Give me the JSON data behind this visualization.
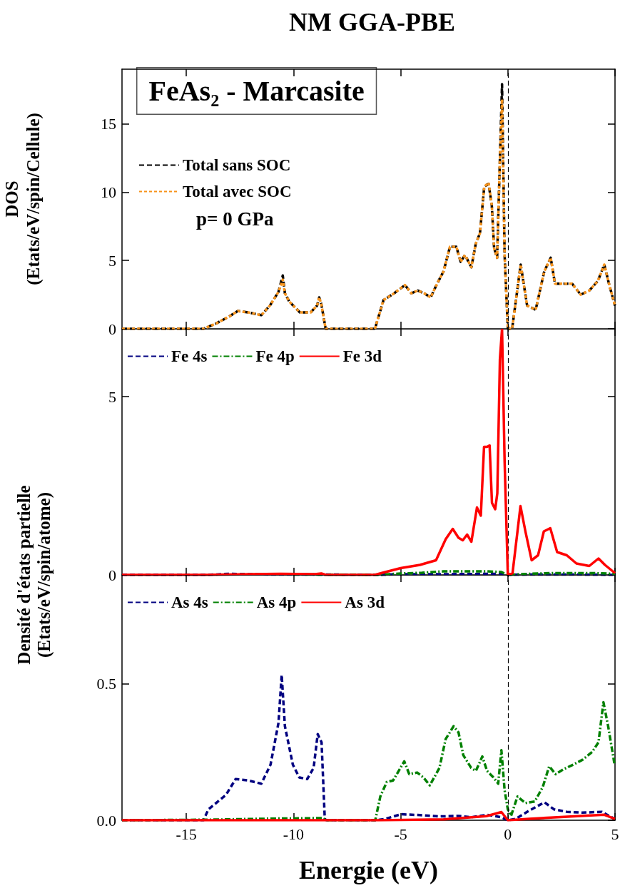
{
  "chart_data": [
    {
      "type": "line",
      "title": "NM GGA-PBE",
      "ylabel": "DOS\n(Etats/eV/spin/Cellule)",
      "annotations": [
        "FeAs₂ - Marcasite",
        "p= 0 GPa"
      ],
      "x": [
        -18,
        -14.2,
        -13.6,
        -13.0,
        -12.6,
        -12.1,
        -11.5,
        -11.1,
        -10.7,
        -10.5,
        -10.4,
        -10.2,
        -9.7,
        -9.2,
        -8.9,
        -8.8,
        -8.7,
        -8.5,
        -6.2,
        -5.8,
        -5.3,
        -4.8,
        -4.5,
        -4.2,
        -3.9,
        -3.6,
        -3.3,
        -3.0,
        -2.7,
        -2.4,
        -2.2,
        -2.0,
        -1.7,
        -1.5,
        -1.3,
        -1.1,
        -0.9,
        -0.75,
        -0.64,
        -0.5,
        -0.37,
        -0.27,
        -0.15,
        0,
        0.2,
        0.6,
        0.9,
        1.3,
        1.7,
        2.0,
        2.2,
        2.6,
        3.0,
        3.4,
        3.8,
        4.2,
        4.5,
        4.75,
        5
      ],
      "series": [
        {
          "name": "Total sans SOC",
          "color": "#000000",
          "line_style": "dashed",
          "values": [
            0,
            0,
            0.4,
            0.9,
            1.3,
            1.2,
            1.0,
            1.7,
            2.7,
            3.9,
            2.6,
            2.0,
            1.2,
            1.2,
            1.7,
            2.3,
            1.8,
            0,
            0,
            2.1,
            2.6,
            3.2,
            2.6,
            2.8,
            2.6,
            2.3,
            3.3,
            4.2,
            6.0,
            6.0,
            4.9,
            5.4,
            4.5,
            6.2,
            7.0,
            10.4,
            10.6,
            9.1,
            5.9,
            5.2,
            12.4,
            17.9,
            5.4,
            0,
            0,
            4.7,
            1.7,
            1.4,
            4.2,
            5.2,
            3.3,
            3.3,
            3.3,
            2.5,
            2.8,
            3.5,
            4.7,
            3.1,
            1.7
          ]
        },
        {
          "name": "Total avec SOC",
          "color": "#f7941d",
          "line_style": "dotted",
          "values": [
            0,
            0,
            0.4,
            0.9,
            1.3,
            1.2,
            1.0,
            1.7,
            2.7,
            3.6,
            2.6,
            2.0,
            1.2,
            1.2,
            1.7,
            2.3,
            1.8,
            0,
            0,
            2.1,
            2.6,
            3.2,
            2.6,
            2.8,
            2.6,
            2.3,
            3.3,
            4.2,
            6.0,
            6.0,
            4.9,
            5.4,
            4.5,
            6.2,
            7.0,
            10.4,
            10.7,
            9.1,
            5.9,
            5.2,
            12.4,
            16.8,
            5.4,
            0,
            0,
            4.7,
            1.7,
            1.4,
            4.2,
            5.2,
            3.3,
            3.3,
            3.3,
            2.5,
            2.8,
            3.5,
            4.7,
            3.1,
            1.7
          ]
        }
      ],
      "xlim": [
        -18,
        5
      ],
      "xticks": [
        -15,
        -10,
        -5,
        0,
        5
      ],
      "ylim": [
        0,
        19
      ],
      "yticks": [
        0,
        5,
        10,
        15
      ],
      "tick_labels": "y",
      "legend": "top left",
      "ref_lines": [
        {
          "axis": "x",
          "value": 0,
          "color": "#000000",
          "line_style": "dashed"
        }
      ]
    },
    {
      "type": "line",
      "ylabel": "Densité d'états partielle\n(Etats/eV/spin/atome)",
      "series": [
        {
          "name": "Fe 4s",
          "color": "#000080",
          "line_style": "dashed",
          "x": [
            -18,
            -14,
            -13,
            -11,
            -8.5,
            -6,
            -5,
            -3,
            -1,
            -0.3,
            0,
            1,
            3,
            5
          ],
          "values": [
            0,
            0,
            0.03,
            0.01,
            0.01,
            0,
            0.02,
            0.02,
            0.03,
            0.03,
            0,
            0.01,
            0.01,
            0
          ]
        },
        {
          "name": "Fe 4p",
          "color": "#008000",
          "line_style": "dashdot",
          "x": [
            -10,
            -6,
            -5,
            -4,
            -3,
            -2,
            -1,
            -0.3,
            0,
            1,
            2,
            3,
            4,
            5
          ],
          "values": [
            0.01,
            0,
            0.04,
            0.06,
            0.1,
            0.1,
            0.1,
            0.08,
            0,
            0.03,
            0.05,
            0.05,
            0.05,
            0.03
          ]
        },
        {
          "name": "Fe 3d",
          "color": "#ff0000",
          "line_style": "solid",
          "x": [
            -18,
            -14,
            -12,
            -10.6,
            -9,
            -8.7,
            -8.5,
            -6.2,
            -5.9,
            -5.0,
            -4.1,
            -3.35,
            -2.9,
            -2.57,
            -2.3,
            -2.1,
            -1.9,
            -1.7,
            -1.44,
            -1.26,
            -1.11,
            -0.97,
            -0.85,
            -0.74,
            -0.59,
            -0.49,
            -0.37,
            -0.27,
            -0.15,
            0,
            0.22,
            0.59,
            0.82,
            1.11,
            1.41,
            1.68,
            1.98,
            2.3,
            2.75,
            3.2,
            3.8,
            4.23,
            4.53,
            5.0
          ],
          "values": [
            0,
            0,
            0.02,
            0.03,
            0.02,
            0.04,
            0,
            0,
            0.05,
            0.19,
            0.28,
            0.41,
            1.0,
            1.29,
            1.04,
            0.97,
            1.13,
            0.93,
            1.89,
            1.66,
            3.59,
            3.59,
            3.63,
            2.02,
            1.84,
            2.29,
            6.05,
            6.9,
            3.18,
            0,
            0.05,
            1.93,
            1.22,
            0.41,
            0.55,
            1.22,
            1.31,
            0.64,
            0.55,
            0.32,
            0.25,
            0.46,
            0.28,
            0.05
          ]
        }
      ],
      "xlim": [
        -18,
        5
      ],
      "xticks": [
        -15,
        -10,
        -5,
        0,
        5
      ],
      "ylim": [
        0,
        6.9
      ],
      "yticks": [
        0,
        5
      ],
      "tick_labels": "y",
      "legend": "top",
      "ref_lines": [
        {
          "axis": "x",
          "value": 0,
          "color": "#000000",
          "line_style": "dashed"
        }
      ]
    },
    {
      "type": "line",
      "xlabel": "Energie (eV)",
      "series": [
        {
          "name": "As 4s",
          "color": "#000080",
          "line_style": "dashed",
          "x": [
            -18,
            -14.2,
            -13.97,
            -13.15,
            -12.7,
            -12.1,
            -11.5,
            -11.07,
            -10.7,
            -10.55,
            -10.4,
            -10.03,
            -9.73,
            -9.36,
            -9.06,
            -8.87,
            -8.69,
            -8.54,
            -8.47,
            -6.17,
            -5.72,
            -4.98,
            -4.09,
            -3.19,
            -2.3,
            -1.71,
            -0.97,
            -0.3,
            0,
            0.37,
            0.97,
            1.71,
            2.15,
            2.75,
            3.49,
            4.38,
            4.98
          ],
          "values": [
            0,
            0,
            0.04,
            0.093,
            0.151,
            0.146,
            0.134,
            0.204,
            0.357,
            0.533,
            0.345,
            0.204,
            0.157,
            0.151,
            0.192,
            0.316,
            0.286,
            0.005,
            0,
            0,
            0.005,
            0.022,
            0.019,
            0.014,
            0.016,
            0.011,
            0.02,
            0.011,
            0,
            0.005,
            0.034,
            0.066,
            0.04,
            0.031,
            0.028,
            0.031,
            0.005
          ]
        },
        {
          "name": "As 4p",
          "color": "#008000",
          "line_style": "dashdot",
          "x": [
            -18,
            -14,
            -11,
            -8.6,
            -8.5,
            -6.2,
            -6.17,
            -5.95,
            -5.65,
            -5.35,
            -4.83,
            -4.6,
            -4.23,
            -3.94,
            -3.64,
            -3.19,
            -2.9,
            -2.53,
            -2.3,
            -2.08,
            -1.71,
            -1.49,
            -1.19,
            -0.97,
            -0.67,
            -0.45,
            -0.3,
            -0.15,
            0,
            0.15,
            0.45,
            0.82,
            1.26,
            1.63,
            1.93,
            2.23,
            2.6,
            3.05,
            3.49,
            3.94,
            4.23,
            4.46,
            4.68,
            4.98
          ],
          "values": [
            0,
            0.002,
            0.006,
            0.008,
            0,
            0,
            0.005,
            0.087,
            0.14,
            0.146,
            0.216,
            0.169,
            0.175,
            0.157,
            0.128,
            0.192,
            0.298,
            0.345,
            0.322,
            0.239,
            0.192,
            0.181,
            0.234,
            0.181,
            0.157,
            0.134,
            0.257,
            0.11,
            0.04,
            0.016,
            0.087,
            0.063,
            0.069,
            0.122,
            0.198,
            0.169,
            0.187,
            0.204,
            0.222,
            0.251,
            0.286,
            0.433,
            0.345,
            0.204
          ]
        },
        {
          "name": "As 3d",
          "color": "#ff0000",
          "line_style": "solid",
          "x": [
            -18,
            -6,
            -3,
            -1,
            -0.3,
            0,
            1,
            2,
            4.5,
            5
          ],
          "values": [
            0,
            0,
            0.003,
            0.015,
            0.03,
            0,
            0.005,
            0.01,
            0.02,
            0.005
          ]
        }
      ],
      "xlim": [
        -18,
        5
      ],
      "xticks": [
        -15,
        -10,
        -5,
        0,
        5
      ],
      "ylim": [
        0,
        0.9
      ],
      "yticks": [
        {
          "value": 0,
          "label": "0.0"
        },
        {
          "value": 0.5,
          "label": "0.5"
        }
      ],
      "legend": "top",
      "ref_lines": [
        {
          "axis": "x",
          "value": 0,
          "color": "#000000",
          "line_style": "dashed"
        }
      ]
    }
  ]
}
